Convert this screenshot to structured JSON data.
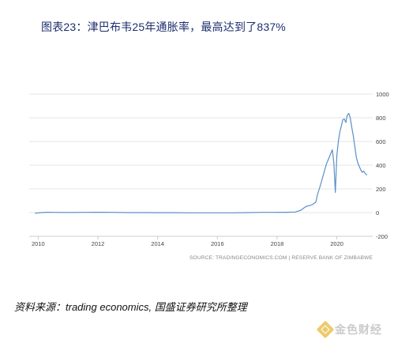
{
  "figure": {
    "title": "图表23：津巴布韦25年通胀率，最高达到了837%",
    "source": "SOURCE: TRADINGECONOMICS.COM | RESERVE BANK OF ZIMBABWE",
    "footnote": "资料来源：trading economics, 国盛证券研究所整理",
    "watermark_text": "金色财经",
    "watermark_icon": "gold-diamond-logo-icon"
  },
  "chart_data": {
    "type": "line",
    "title": "",
    "xlabel": "",
    "ylabel": "",
    "xlim": [
      2009.7,
      2021.2
    ],
    "ylim": [
      -200,
      1000
    ],
    "x_ticks": [
      2010,
      2012,
      2014,
      2016,
      2018,
      2020
    ],
    "x_tick_labels": [
      "2010",
      "2012",
      "2014",
      "2016",
      "2018",
      "2020"
    ],
    "y_ticks": [
      -200,
      0,
      200,
      400,
      600,
      800,
      1000
    ],
    "y_tick_labels": [
      "-200",
      "0",
      "200",
      "400",
      "600",
      "800",
      "1000"
    ],
    "y_axis_side": "right",
    "grid": "horizontal",
    "legend": "none",
    "line_color": "#5b8ec9",
    "grid_color": "#e4e4e4",
    "series": [
      {
        "x": [
          2009.9,
          2010.1,
          2010.3,
          2010.5,
          2011.0,
          2011.5,
          2012.0,
          2012.5,
          2013.0,
          2013.5,
          2014.0,
          2014.5,
          2015.0,
          2015.5,
          2016.0,
          2016.5,
          2017.0,
          2017.5,
          2017.9,
          2018.3,
          2018.6,
          2018.8,
          2018.9,
          2019.0,
          2019.1,
          2019.2,
          2019.3,
          2019.35,
          2019.45,
          2019.55,
          2019.65,
          2019.75,
          2019.8,
          2019.85,
          2019.9,
          2019.95,
          2020.0,
          2020.05,
          2020.1,
          2020.15,
          2020.2,
          2020.25,
          2020.3,
          2020.35,
          2020.4,
          2020.45,
          2020.5,
          2020.55,
          2020.6,
          2020.65,
          2020.7,
          2020.75,
          2020.8,
          2020.85,
          2020.9,
          2020.95,
          2021.0
        ],
        "y": [
          -5,
          0,
          3,
          2,
          1,
          2,
          3,
          2,
          0,
          0,
          -1,
          -1,
          -2,
          -2,
          -2,
          -2,
          0,
          2,
          2,
          3,
          5,
          20,
          40,
          55,
          60,
          70,
          90,
          150,
          230,
          320,
          410,
          470,
          500,
          530,
          420,
          170,
          480,
          600,
          680,
          730,
          785,
          790,
          760,
          820,
          837,
          800,
          720,
          650,
          560,
          470,
          420,
          390,
          360,
          340,
          350,
          330,
          318
        ]
      }
    ]
  }
}
